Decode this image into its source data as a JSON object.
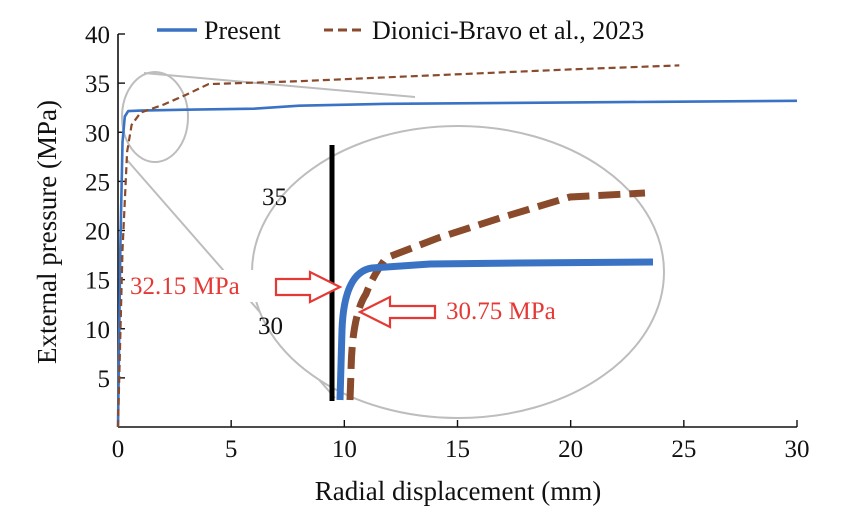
{
  "chart_data": {
    "type": "line",
    "title": "",
    "xlabel": "Radial displacement (mm)",
    "ylabel": "External pressure (MPa)",
    "xlim": [
      0,
      30
    ],
    "ylim": [
      0,
      40
    ],
    "xticks": [
      0,
      5,
      10,
      15,
      20,
      25,
      30
    ],
    "yticks": [
      5,
      10,
      15,
      20,
      25,
      30,
      35,
      40
    ],
    "grid": false,
    "legend_position": "top",
    "series": [
      {
        "name": "Present",
        "color": "#3a72c4",
        "style": "solid",
        "x": [
          0,
          0.1,
          0.2,
          0.3,
          0.45,
          1,
          3,
          6,
          8,
          12,
          18,
          24,
          30
        ],
        "y": [
          0,
          18,
          29,
          31.6,
          32.15,
          32.2,
          32.3,
          32.4,
          32.7,
          32.9,
          33.0,
          33.1,
          33.2
        ]
      },
      {
        "name": "Dionici-Bravo et al., 2023",
        "color": "#8a4a2c",
        "style": "dashed",
        "x": [
          0,
          0.2,
          0.4,
          0.6,
          1.0,
          2.0,
          3.0,
          4.0,
          8,
          12,
          16,
          20,
          24.8
        ],
        "y": [
          0,
          18,
          28,
          30.75,
          32.0,
          32.8,
          33.8,
          34.9,
          35.2,
          35.6,
          36.0,
          36.4,
          36.8
        ]
      }
    ],
    "inset": {
      "tick_labels": [
        "35",
        "30"
      ],
      "annotations": [
        {
          "text": "32.15 MPa",
          "series": "Present"
        },
        {
          "text": "30.75 MPa",
          "series": "Dionici-Bravo et al., 2023"
        }
      ]
    }
  }
}
